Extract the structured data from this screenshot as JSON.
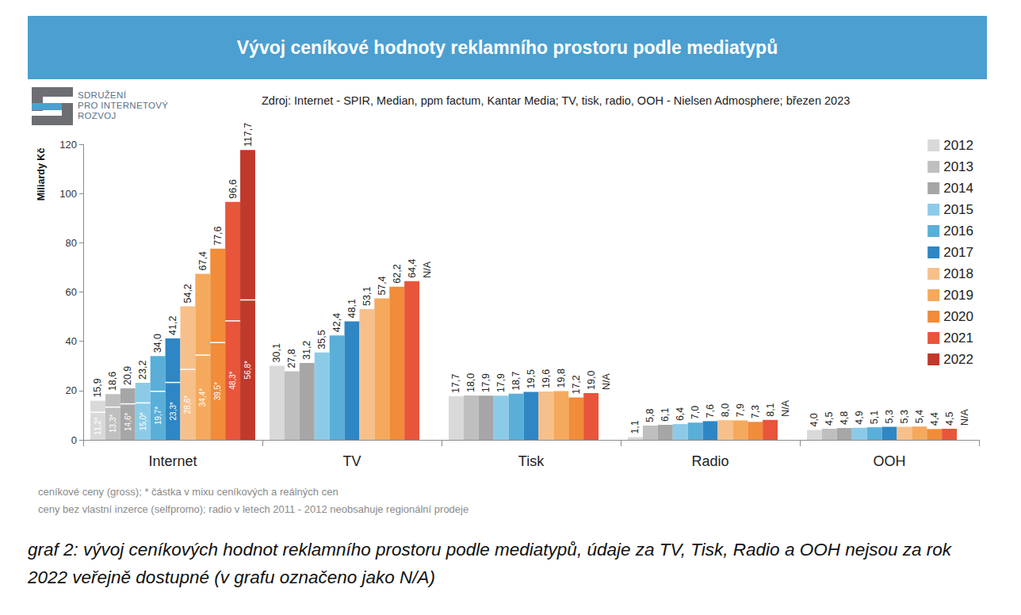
{
  "chart_data": {
    "type": "bar",
    "title": "Vývoj ceníkové hodnoty reklamního prostoru podle mediatypů",
    "logo": [
      "SDRUŽENÍ",
      "PRO INTERNETOVÝ",
      "ROZVOJ"
    ],
    "source": "Zdroj: Internet - SPIR, Median, ppm factum, Kantar Media; TV, tisk, radio, OOH - Nielsen Admosphere; březen 2023",
    "y_label": "Miliardy Kč",
    "categories": [
      "Internet",
      "TV",
      "Tisk",
      "Radio",
      "OOH"
    ],
    "series": [
      {
        "name": "2012",
        "color": "#d9d9d9",
        "values": [
          15.9,
          30.1,
          17.7,
          1.1,
          4.0
        ],
        "value_labels": [
          "15,9",
          "30,1",
          "17,7",
          "1,1",
          "4,0"
        ],
        "inner_values": [
          11.2,
          null,
          null,
          null,
          null
        ],
        "inner_value_labels": [
          "11,2*",
          null,
          null,
          null,
          null
        ]
      },
      {
        "name": "2013",
        "color": "#bfbfbf",
        "values": [
          18.6,
          27.8,
          18.0,
          5.8,
          4.5
        ],
        "value_labels": [
          "18,6",
          "27,8",
          "18,0",
          "5,8",
          "4,5"
        ],
        "inner_values": [
          13.3,
          null,
          null,
          null,
          null
        ],
        "inner_value_labels": [
          "13,3*",
          null,
          null,
          null,
          null
        ]
      },
      {
        "name": "2014",
        "color": "#a6a6a6",
        "values": [
          20.9,
          31.2,
          17.9,
          6.1,
          4.8
        ],
        "value_labels": [
          "20,9",
          "31,2",
          "17,9",
          "6,1",
          "4,8"
        ],
        "inner_values": [
          14.6,
          null,
          null,
          null,
          null
        ],
        "inner_value_labels": [
          "14,6*",
          null,
          null,
          null,
          null
        ]
      },
      {
        "name": "2015",
        "color": "#8ccbe8",
        "values": [
          23.2,
          35.5,
          17.9,
          6.4,
          4.9
        ],
        "value_labels": [
          "23,2",
          "35,5",
          "17,9",
          "6,4",
          "4,9"
        ],
        "inner_values": [
          15.0,
          null,
          null,
          null,
          null
        ],
        "inner_value_labels": [
          "15,0*",
          null,
          null,
          null,
          null
        ]
      },
      {
        "name": "2016",
        "color": "#5aafd8",
        "values": [
          34.0,
          42.4,
          18.7,
          7.0,
          5.1
        ],
        "value_labels": [
          "34,0",
          "42,4",
          "18,7",
          "7,0",
          "5,1"
        ],
        "inner_values": [
          19.7,
          null,
          null,
          null,
          null
        ],
        "inner_value_labels": [
          "19,7*",
          null,
          null,
          null,
          null
        ]
      },
      {
        "name": "2017",
        "color": "#2f86c4",
        "values": [
          41.2,
          48.1,
          19.5,
          7.6,
          5.3
        ],
        "value_labels": [
          "41,2",
          "48,1",
          "19,5",
          "7,6",
          "5,3"
        ],
        "inner_values": [
          23.3,
          null,
          null,
          null,
          null
        ],
        "inner_value_labels": [
          "23,3*",
          null,
          null,
          null,
          null
        ]
      },
      {
        "name": "2018",
        "color": "#f7c08a",
        "values": [
          54.2,
          53.1,
          19.6,
          8.0,
          5.3
        ],
        "value_labels": [
          "54,2",
          "53,1",
          "19,6",
          "8,0",
          "5,3"
        ],
        "inner_values": [
          28.6,
          null,
          null,
          null,
          null
        ],
        "inner_value_labels": [
          "28,6*",
          null,
          null,
          null,
          null
        ]
      },
      {
        "name": "2019",
        "color": "#f5a95c",
        "values": [
          67.4,
          57.4,
          19.8,
          7.9,
          5.4
        ],
        "value_labels": [
          "67,4",
          "57,4",
          "19,8",
          "7,9",
          "5,4"
        ],
        "inner_values": [
          34.4,
          null,
          null,
          null,
          null
        ],
        "inner_value_labels": [
          "34,4*",
          null,
          null,
          null,
          null
        ]
      },
      {
        "name": "2020",
        "color": "#f08c3a",
        "values": [
          77.6,
          62.2,
          17.2,
          7.3,
          4.4
        ],
        "value_labels": [
          "77,6",
          "62,2",
          "17,2",
          "7,3",
          "4,4"
        ],
        "inner_values": [
          39.5,
          null,
          null,
          null,
          null
        ],
        "inner_value_labels": [
          "39,5*",
          null,
          null,
          null,
          null
        ]
      },
      {
        "name": "2021",
        "color": "#e8553a",
        "values": [
          96.6,
          64.4,
          19.0,
          8.1,
          4.5
        ],
        "value_labels": [
          "96,6",
          "64,4",
          "19,0",
          "8,1",
          "4,5"
        ],
        "inner_values": [
          48.3,
          null,
          null,
          null,
          null
        ],
        "inner_value_labels": [
          "48,3*",
          null,
          null,
          null,
          null
        ]
      },
      {
        "name": "2022",
        "color": "#c0392b",
        "values": [
          117.7,
          null,
          null,
          null,
          null
        ],
        "value_labels": [
          "117,7",
          "N/A",
          "N/A",
          "N/A",
          "N/A"
        ],
        "inner_values": [
          56.8,
          null,
          null,
          null,
          null
        ],
        "inner_value_labels": [
          "56,8*",
          null,
          null,
          null,
          null
        ]
      }
    ],
    "ylim": [
      0,
      120
    ],
    "yticks": [
      0,
      20,
      40,
      60,
      80,
      100,
      120
    ],
    "grid": false,
    "legend": "upper right",
    "data_labels": true,
    "notes": [
      "ceníkové ceny (gross); * částka v mixu ceníkových a reálných cen",
      "ceny bez vlastní inzerce (selfpromo); radio v letech 2011 - 2012 neobsahuje regionální prodeje"
    ],
    "caption": "graf 2: vývoj ceníkových hodnot reklamního prostoru podle mediatypů, údaje za TV, Tisk, Radio a OOH nejsou za rok 2022 veřejně dostupné (v grafu označeno jako N/A)"
  }
}
